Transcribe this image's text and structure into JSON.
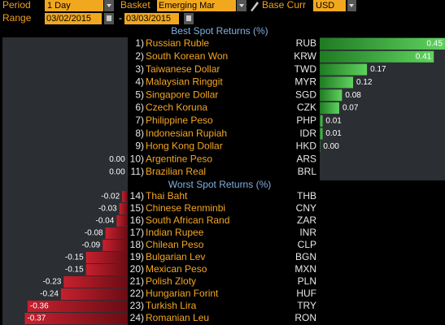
{
  "header": {
    "period_label": "Period",
    "period_value": "1 Day",
    "basket_label": "Basket",
    "basket_value": "Emerging Mar",
    "base_curr_label": "Base Curr",
    "base_curr_value": "USD",
    "range_label": "Range",
    "range_start": "03/02/2015",
    "range_separator": "-",
    "range_end": "03/03/2015"
  },
  "best": {
    "heading": "Best Spot Returns (%)",
    "rows": [
      {
        "rank": "1)",
        "name": "Russian Ruble",
        "code": "RUB",
        "value": 0.45,
        "value_label": "0.45"
      },
      {
        "rank": "2)",
        "name": "South Korean Won",
        "code": "KRW",
        "value": 0.41,
        "value_label": "0.41"
      },
      {
        "rank": "3)",
        "name": "Taiwanese Dollar",
        "code": "TWD",
        "value": 0.17,
        "value_label": "0.17"
      },
      {
        "rank": "4)",
        "name": "Malaysian Ringgit",
        "code": "MYR",
        "value": 0.12,
        "value_label": "0.12"
      },
      {
        "rank": "5)",
        "name": "Singapore Dollar",
        "code": "SGD",
        "value": 0.08,
        "value_label": "0.08"
      },
      {
        "rank": "6)",
        "name": "Czech Koruna",
        "code": "CZK",
        "value": 0.07,
        "value_label": "0.07"
      },
      {
        "rank": "7)",
        "name": "Philippine Peso",
        "code": "PHP",
        "value": 0.01,
        "value_label": "0.01"
      },
      {
        "rank": "8)",
        "name": "Indonesian Rupiah",
        "code": "IDR",
        "value": 0.01,
        "value_label": "0.01"
      },
      {
        "rank": "9)",
        "name": "Hong Kong Dollar",
        "code": "HKD",
        "value": 0.001,
        "value_label": "0.00"
      },
      {
        "rank": "10)",
        "name": "Argentine Peso",
        "code": "ARS",
        "value": -0.001,
        "value_label": "0.00"
      },
      {
        "rank": "11)",
        "name": "Brazilian Real",
        "code": "BRL",
        "value": -0.001,
        "value_label": "0.00"
      }
    ]
  },
  "worst": {
    "heading": "Worst Spot Returns (%)",
    "rows": [
      {
        "rank": "14)",
        "name": "Thai Baht",
        "code": "THB",
        "value": -0.02,
        "value_label": "-0.02"
      },
      {
        "rank": "15)",
        "name": "Chinese Renminbi",
        "code": "CNY",
        "value": -0.03,
        "value_label": "-0.03"
      },
      {
        "rank": "16)",
        "name": "South African Rand",
        "code": "ZAR",
        "value": -0.04,
        "value_label": "-0.04"
      },
      {
        "rank": "17)",
        "name": "Indian Rupee",
        "code": "INR",
        "value": -0.08,
        "value_label": "-0.08"
      },
      {
        "rank": "18)",
        "name": "Chilean Peso",
        "code": "CLP",
        "value": -0.09,
        "value_label": "-0.09"
      },
      {
        "rank": "19)",
        "name": "Bulgarian Lev",
        "code": "BGN",
        "value": -0.15,
        "value_label": "-0.15"
      },
      {
        "rank": "20)",
        "name": "Mexican Peso",
        "code": "MXN",
        "value": -0.15,
        "value_label": "-0.15"
      },
      {
        "rank": "21)",
        "name": "Polish Zloty",
        "code": "PLN",
        "value": -0.23,
        "value_label": "-0.23"
      },
      {
        "rank": "22)",
        "name": "Hungarian Forint",
        "code": "HUF",
        "value": -0.24,
        "value_label": "-0.24"
      },
      {
        "rank": "23)",
        "name": "Turkish Lira",
        "code": "TRY",
        "value": -0.36,
        "value_label": "-0.36"
      },
      {
        "rank": "24)",
        "name": "Romanian Leu",
        "code": "RON",
        "value": -0.37,
        "value_label": "-0.37"
      }
    ]
  }
}
